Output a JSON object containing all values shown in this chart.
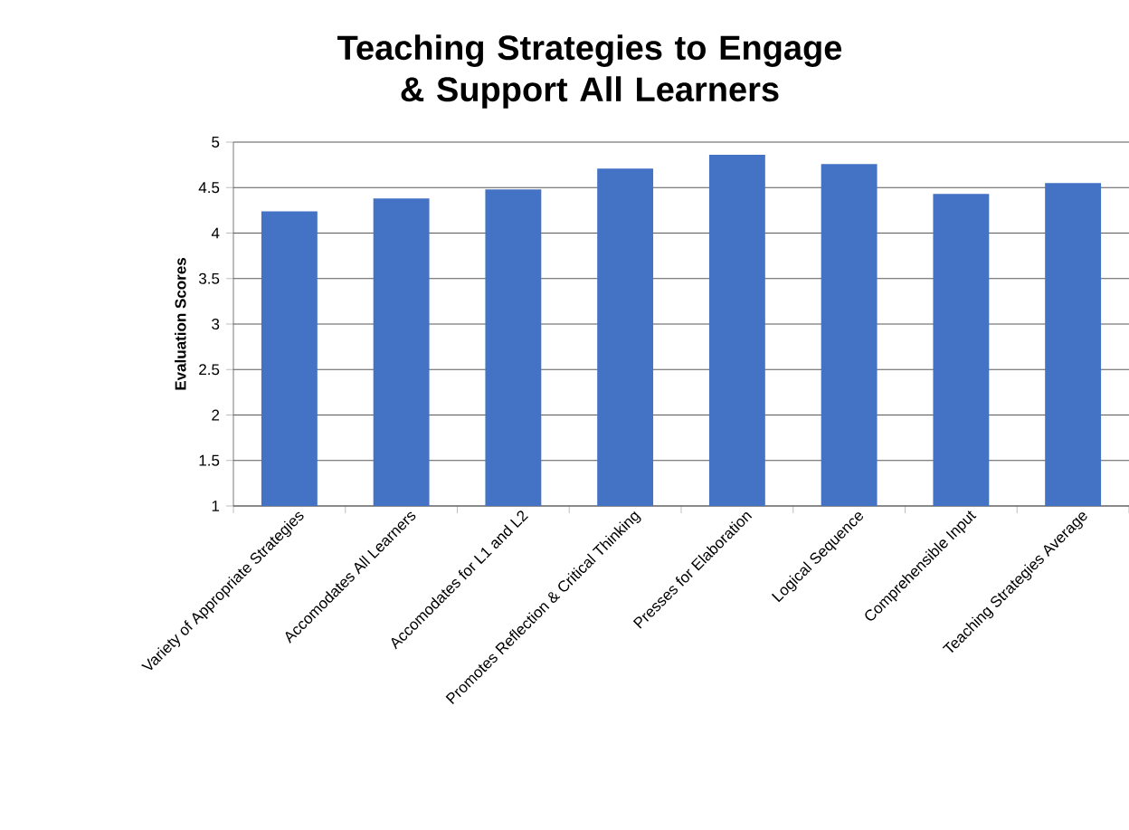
{
  "chart_data": {
    "type": "bar",
    "title": "Teaching Strategies to Engage & Support All Learners",
    "ylabel": "Evaluation Scores",
    "categories": [
      "Variety of Appropriate Strategies",
      "Accomodates All Learners",
      "Accomodates for L1 and L2",
      "Promotes Reflection & Critical Thinking",
      "Presses for Elaboration",
      "Logical Sequence",
      "Comprehensible Input",
      "Teaching Strategies Average"
    ],
    "values": [
      4.24,
      4.38,
      4.48,
      4.71,
      4.86,
      4.76,
      4.43,
      4.55
    ],
    "color": "#4472c4",
    "ylim": [
      1,
      5
    ],
    "yticks": [
      1,
      1.5,
      2,
      2.5,
      3,
      3.5,
      4,
      4.5,
      5
    ],
    "grid": "y"
  }
}
